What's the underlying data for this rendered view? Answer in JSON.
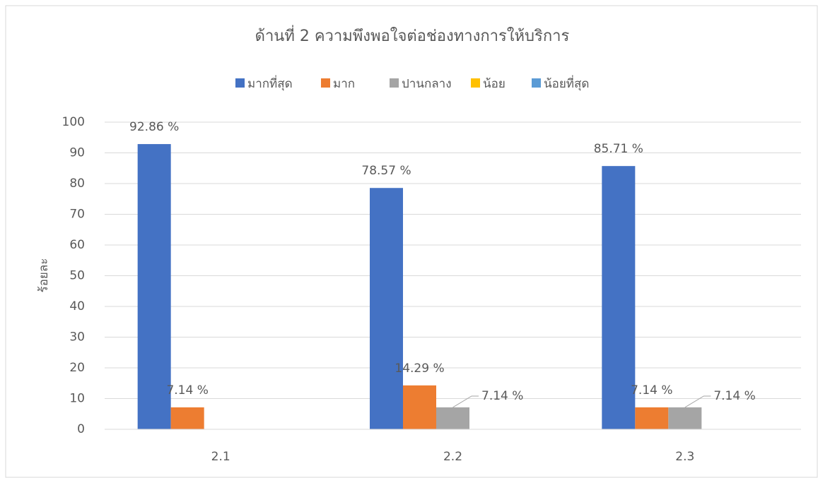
{
  "chart_data": {
    "type": "bar",
    "title": "ด้านที่ 2 ความพึงพอใจต่อช่องทางการให้บริการ",
    "y_label": "ร้อยละ",
    "categories": [
      "2.1",
      "2.2",
      "2.3"
    ],
    "series": [
      {
        "name": "มากที่สุด",
        "color": "#4472c4",
        "values": [
          92.86,
          78.57,
          85.71
        ],
        "value_labels": [
          "92.86 %",
          "78.57 %",
          "85.71 %"
        ]
      },
      {
        "name": "มาก",
        "color": "#ed7d31",
        "values": [
          7.14,
          14.29,
          7.14
        ],
        "value_labels": [
          "7.14 %",
          "14.29 %",
          "7.14 %"
        ]
      },
      {
        "name": "ปานกลาง",
        "color": "#a5a5a5",
        "values": [
          null,
          7.14,
          7.14
        ],
        "value_labels": [
          null,
          "7.14 %",
          "7.14 %"
        ]
      },
      {
        "name": "น้อย",
        "color": "#ffc000",
        "values": [
          null,
          null,
          null
        ],
        "value_labels": [
          null,
          null,
          null
        ]
      },
      {
        "name": "น้อยที่สุด",
        "color": "#5b9bd5",
        "values": [
          null,
          null,
          null
        ],
        "value_labels": [
          null,
          null,
          null
        ]
      }
    ],
    "ylim": [
      0,
      100
    ],
    "yticks": [
      0,
      10,
      20,
      30,
      40,
      50,
      60,
      70,
      80,
      90,
      100
    ],
    "grid": true,
    "legend": "top"
  }
}
